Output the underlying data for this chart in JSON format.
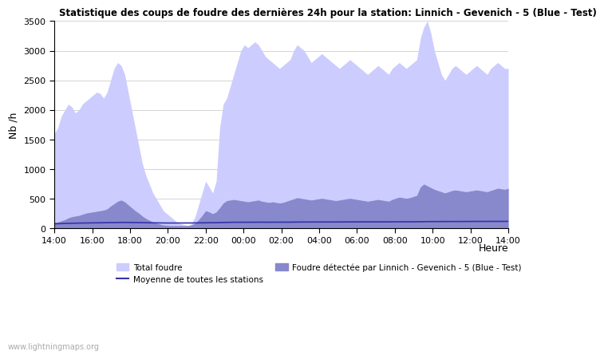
{
  "title": "Statistique des coups de foudre des dernières 24h pour la station: Linnich - Gevenich - 5 (Blue - Test)",
  "xlabel": "Heure",
  "ylabel": "Nb /h",
  "ylim": [
    0,
    3500
  ],
  "yticks": [
    0,
    500,
    1000,
    1500,
    2000,
    2500,
    3000,
    3500
  ],
  "xtick_labels": [
    "14:00",
    "16:00",
    "18:00",
    "20:00",
    "22:00",
    "00:00",
    "02:00",
    "04:00",
    "06:00",
    "08:00",
    "10:00",
    "12:00",
    "14:00"
  ],
  "color_total": "#ccccff",
  "color_detected": "#8888cc",
  "color_mean": "#3333aa",
  "watermark": "www.lightningmaps.org",
  "legend_total": "Total foudre",
  "legend_mean": "Moyenne de toutes les stations",
  "legend_detected": "Foudre détectée par Linnich - Gevenich - 5 (Blue - Test)",
  "background_color": "#ffffff",
  "total_foudre": [
    1600,
    1700,
    1900,
    2000,
    2100,
    2050,
    1950,
    2000,
    2100,
    2150,
    2200,
    2250,
    2300,
    2280,
    2200,
    2300,
    2500,
    2700,
    2800,
    2750,
    2600,
    2300,
    2000,
    1700,
    1400,
    1100,
    900,
    750,
    600,
    500,
    400,
    300,
    250,
    200,
    150,
    100,
    80,
    60,
    50,
    80,
    200,
    400,
    600,
    800,
    700,
    600,
    800,
    1700,
    2100,
    2200,
    2400,
    2600,
    2800,
    3000,
    3100,
    3050,
    3100,
    3150,
    3100,
    3000,
    2900,
    2850,
    2800,
    2750,
    2700,
    2750,
    2800,
    2850,
    3000,
    3100,
    3050,
    3000,
    2900,
    2800,
    2850,
    2900,
    2950,
    2900,
    2850,
    2800,
    2750,
    2700,
    2750,
    2800,
    2850,
    2800,
    2750,
    2700,
    2650,
    2600,
    2650,
    2700,
    2750,
    2700,
    2650,
    2600,
    2700,
    2750,
    2800,
    2750,
    2700,
    2750,
    2800,
    2850,
    3200,
    3400,
    3500,
    3300,
    3000,
    2800,
    2600,
    2500,
    2600,
    2700,
    2750,
    2700,
    2650,
    2600,
    2650,
    2700,
    2750,
    2700,
    2650,
    2600,
    2700,
    2750,
    2800,
    2750,
    2700,
    2700
  ],
  "detected": [
    100,
    110,
    130,
    150,
    180,
    200,
    210,
    220,
    240,
    260,
    270,
    280,
    290,
    300,
    310,
    330,
    380,
    420,
    460,
    480,
    450,
    400,
    350,
    300,
    260,
    210,
    170,
    140,
    110,
    90,
    75,
    60,
    55,
    50,
    50,
    50,
    50,
    50,
    50,
    60,
    90,
    150,
    220,
    300,
    280,
    250,
    280,
    350,
    430,
    470,
    480,
    490,
    480,
    470,
    460,
    450,
    460,
    470,
    480,
    460,
    450,
    440,
    450,
    440,
    430,
    440,
    460,
    480,
    500,
    520,
    510,
    500,
    490,
    480,
    490,
    500,
    510,
    500,
    490,
    480,
    470,
    480,
    490,
    500,
    510,
    500,
    490,
    480,
    470,
    460,
    470,
    480,
    490,
    480,
    470,
    460,
    490,
    510,
    530,
    520,
    510,
    520,
    540,
    560,
    700,
    750,
    720,
    690,
    660,
    640,
    620,
    600,
    620,
    640,
    650,
    640,
    630,
    620,
    630,
    640,
    650,
    640,
    630,
    620,
    640,
    660,
    680,
    670,
    660,
    680
  ],
  "mean_line": [
    80,
    82,
    84,
    86,
    88,
    90,
    91,
    92,
    94,
    95,
    96,
    97,
    98,
    99,
    100,
    101,
    102,
    103,
    104,
    105,
    104,
    103,
    102,
    101,
    100,
    99,
    98,
    97,
    96,
    95,
    94,
    93,
    93,
    93,
    93,
    93,
    93,
    93,
    93,
    94,
    95,
    96,
    97,
    98,
    98,
    98,
    99,
    100,
    102,
    104,
    105,
    106,
    106,
    106,
    106,
    106,
    107,
    107,
    108,
    107,
    107,
    107,
    107,
    107,
    107,
    107,
    108,
    108,
    109,
    110,
    110,
    110,
    110,
    110,
    110,
    111,
    111,
    111,
    111,
    111,
    111,
    111,
    112,
    112,
    112,
    112,
    112,
    112,
    112,
    112,
    112,
    112,
    112,
    113,
    113,
    113,
    113,
    114,
    114,
    114,
    114,
    114,
    115,
    115,
    116,
    117,
    118,
    118,
    118,
    118,
    118,
    118,
    119,
    119,
    119,
    119,
    119,
    119,
    120,
    120,
    120,
    120,
    120,
    120,
    121,
    121,
    121,
    121,
    121,
    122
  ]
}
